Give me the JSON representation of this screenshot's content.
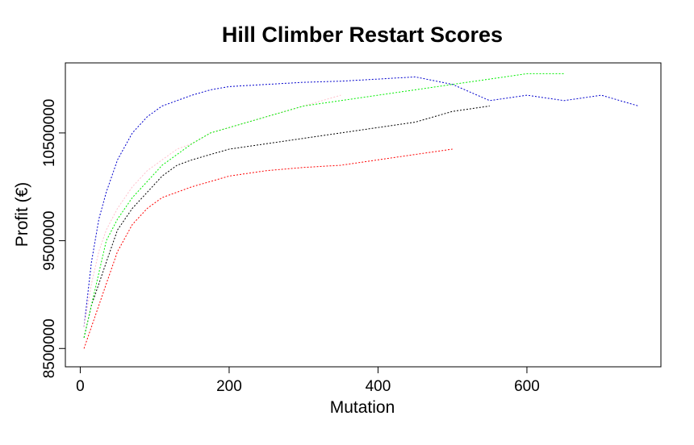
{
  "chart_data": {
    "type": "line",
    "title": "Hill Climber Restart Scores",
    "xlabel": "Mutation",
    "ylabel": "Profit (€)",
    "xlim": [
      -20,
      780
    ],
    "ylim": [
      8330000,
      11150000
    ],
    "x_ticks": [
      0,
      200,
      400,
      600
    ],
    "y_ticks": [
      8500000,
      9500000,
      10500000
    ],
    "grid": false,
    "legend": "none",
    "line_style": "dotted",
    "series": [
      {
        "color": "#0000CD",
        "x": [
          5,
          15,
          25,
          35,
          50,
          70,
          90,
          110,
          130,
          150,
          175,
          200,
          250,
          300,
          350,
          400,
          450,
          500,
          550,
          600,
          650,
          700,
          750
        ],
        "y": [
          8700000,
          9300000,
          9700000,
          9950000,
          10250000,
          10500000,
          10650000,
          10750000,
          10800000,
          10850000,
          10900000,
          10930000,
          10950000,
          10970000,
          10980000,
          11000000,
          11020000,
          10950000,
          10800000,
          10850000,
          10800000,
          10850000,
          10750000
        ]
      },
      {
        "color": "#000000",
        "x": [
          5,
          15,
          25,
          35,
          50,
          70,
          90,
          110,
          130,
          150,
          175,
          200,
          250,
          300,
          350,
          400,
          450,
          500,
          550
        ],
        "y": [
          8600000,
          8900000,
          9100000,
          9300000,
          9600000,
          9800000,
          9950000,
          10100000,
          10200000,
          10250000,
          10300000,
          10350000,
          10400000,
          10450000,
          10500000,
          10550000,
          10600000,
          10700000,
          10750000
        ]
      },
      {
        "color": "#FFC0CB",
        "x": [
          5,
          15,
          25,
          35,
          50,
          70,
          90,
          110,
          130,
          150,
          175,
          200,
          250,
          300,
          350
        ],
        "y": [
          8700000,
          9100000,
          9400000,
          9600000,
          9800000,
          10000000,
          10150000,
          10250000,
          10350000,
          10400000,
          10500000,
          10550000,
          10650000,
          10750000,
          10850000
        ]
      },
      {
        "color": "#FF0000",
        "x": [
          5,
          15,
          25,
          35,
          50,
          70,
          90,
          110,
          130,
          150,
          175,
          200,
          250,
          300,
          350,
          400,
          450,
          500
        ],
        "y": [
          8500000,
          8700000,
          8900000,
          9100000,
          9400000,
          9650000,
          9800000,
          9900000,
          9950000,
          10000000,
          10050000,
          10100000,
          10150000,
          10180000,
          10200000,
          10250000,
          10300000,
          10350000
        ]
      },
      {
        "color": "#00EE00",
        "x": [
          5,
          15,
          25,
          35,
          50,
          70,
          90,
          110,
          130,
          150,
          175,
          200,
          250,
          300,
          350,
          400,
          450,
          500,
          550,
          600,
          650
        ],
        "y": [
          8600000,
          8900000,
          9200000,
          9500000,
          9700000,
          9900000,
          10050000,
          10200000,
          10300000,
          10400000,
          10500000,
          10550000,
          10650000,
          10750000,
          10800000,
          10850000,
          10900000,
          10950000,
          11000000,
          11050000,
          11050000
        ]
      }
    ]
  }
}
